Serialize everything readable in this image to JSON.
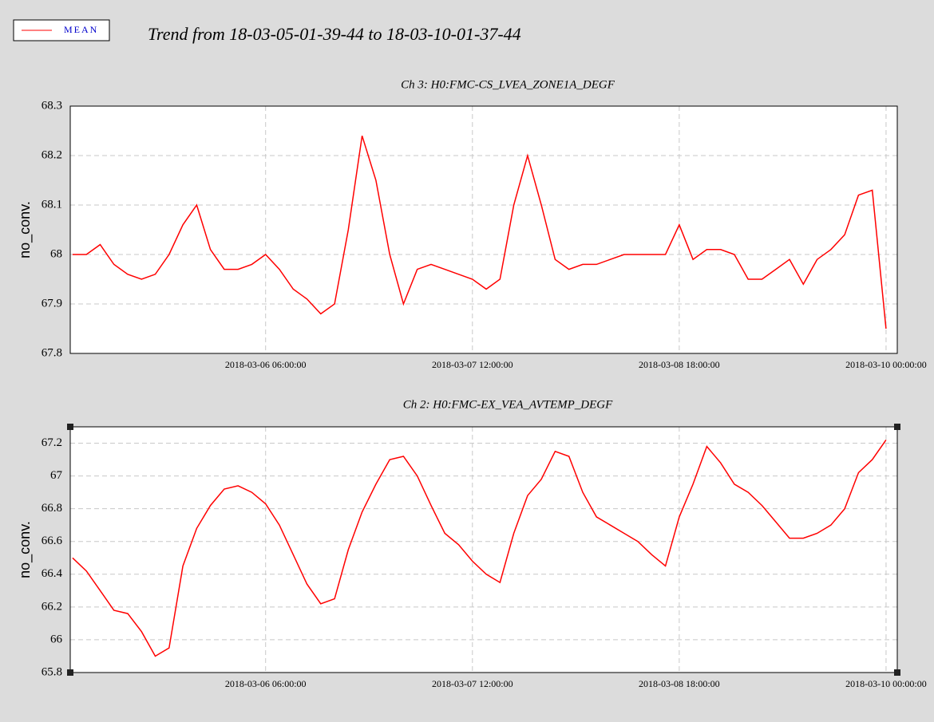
{
  "page_title": "Trend from 18-03-05-01-39-44 to 18-03-10-01-37-44",
  "chart_data": [
    {
      "type": "line",
      "title": "Ch 3: H0:FMC-CS_LVEA_ZONE1A_DEGF",
      "y_label": "no_conv.",
      "xlim": [
        "2018-03-05 01:39:44",
        "2018-03-10 01:37:44"
      ],
      "xticks": [
        "2018-03-06 06:00:00",
        "2018-03-07 12:00:00",
        "2018-03-08 18:00:00",
        "2018-03-10 00:00:00"
      ],
      "ylim": [
        67.8,
        68.3
      ],
      "yticks": [
        67.8,
        67.9,
        68,
        68.1,
        68.2,
        68.3
      ],
      "grid": true,
      "x": [
        "2018-03-05 02:00:00",
        "2018-03-05 04:00:00",
        "2018-03-05 06:00:00",
        "2018-03-05 08:00:00",
        "2018-03-05 10:00:00",
        "2018-03-05 12:00:00",
        "2018-03-05 14:00:00",
        "2018-03-05 16:00:00",
        "2018-03-05 18:00:00",
        "2018-03-05 20:00:00",
        "2018-03-05 22:00:00",
        "2018-03-06 00:00:00",
        "2018-03-06 02:00:00",
        "2018-03-06 04:00:00",
        "2018-03-06 06:00:00",
        "2018-03-06 08:00:00",
        "2018-03-06 10:00:00",
        "2018-03-06 12:00:00",
        "2018-03-06 14:00:00",
        "2018-03-06 16:00:00",
        "2018-03-06 18:00:00",
        "2018-03-06 20:00:00",
        "2018-03-06 22:00:00",
        "2018-03-07 00:00:00",
        "2018-03-07 02:00:00",
        "2018-03-07 04:00:00",
        "2018-03-07 06:00:00",
        "2018-03-07 08:00:00",
        "2018-03-07 10:00:00",
        "2018-03-07 12:00:00",
        "2018-03-07 14:00:00",
        "2018-03-07 16:00:00",
        "2018-03-07 18:00:00",
        "2018-03-07 20:00:00",
        "2018-03-07 22:00:00",
        "2018-03-08 00:00:00",
        "2018-03-08 02:00:00",
        "2018-03-08 04:00:00",
        "2018-03-08 06:00:00",
        "2018-03-08 08:00:00",
        "2018-03-08 10:00:00",
        "2018-03-08 12:00:00",
        "2018-03-08 14:00:00",
        "2018-03-08 16:00:00",
        "2018-03-08 18:00:00",
        "2018-03-08 20:00:00",
        "2018-03-08 22:00:00",
        "2018-03-09 00:00:00",
        "2018-03-09 02:00:00",
        "2018-03-09 04:00:00",
        "2018-03-09 06:00:00",
        "2018-03-09 08:00:00",
        "2018-03-09 10:00:00",
        "2018-03-09 12:00:00",
        "2018-03-09 14:00:00",
        "2018-03-09 16:00:00",
        "2018-03-09 18:00:00",
        "2018-03-09 20:00:00",
        "2018-03-09 22:00:00",
        "2018-03-10 00:00:00"
      ],
      "series": [
        {
          "name": "MEAN",
          "color": "#ff0000",
          "values": [
            68.0,
            68.0,
            68.02,
            67.98,
            67.96,
            67.95,
            67.96,
            68.0,
            68.06,
            68.1,
            68.01,
            67.97,
            67.97,
            67.98,
            68.0,
            67.97,
            67.93,
            67.91,
            67.88,
            67.9,
            68.05,
            68.24,
            68.15,
            68.0,
            67.9,
            67.97,
            67.98,
            67.97,
            67.96,
            67.95,
            67.93,
            67.95,
            68.1,
            68.2,
            68.1,
            67.99,
            67.97,
            67.98,
            67.98,
            67.99,
            68.0,
            68.0,
            68.0,
            68.0,
            68.06,
            67.99,
            68.01,
            68.01,
            68.0,
            67.95,
            67.95,
            67.97,
            67.99,
            67.94,
            67.99,
            68.01,
            68.04,
            68.12,
            68.13,
            67.85
          ]
        }
      ]
    },
    {
      "type": "line",
      "title": "Ch 2: H0:FMC-EX_VEA_AVTEMP_DEGF",
      "y_label": "no_conv.",
      "xlim": [
        "2018-03-05 01:39:44",
        "2018-03-10 01:37:44"
      ],
      "xticks": [
        "2018-03-06 06:00:00",
        "2018-03-07 12:00:00",
        "2018-03-08 18:00:00",
        "2018-03-10 00:00:00"
      ],
      "ylim": [
        65.8,
        67.3
      ],
      "yticks": [
        65.8,
        66,
        66.2,
        66.4,
        66.6,
        66.8,
        67,
        67.2
      ],
      "grid": true,
      "x": [
        "2018-03-05 02:00:00",
        "2018-03-05 04:00:00",
        "2018-03-05 06:00:00",
        "2018-03-05 08:00:00",
        "2018-03-05 10:00:00",
        "2018-03-05 12:00:00",
        "2018-03-05 14:00:00",
        "2018-03-05 16:00:00",
        "2018-03-05 18:00:00",
        "2018-03-05 20:00:00",
        "2018-03-05 22:00:00",
        "2018-03-06 00:00:00",
        "2018-03-06 02:00:00",
        "2018-03-06 04:00:00",
        "2018-03-06 06:00:00",
        "2018-03-06 08:00:00",
        "2018-03-06 10:00:00",
        "2018-03-06 12:00:00",
        "2018-03-06 14:00:00",
        "2018-03-06 16:00:00",
        "2018-03-06 18:00:00",
        "2018-03-06 20:00:00",
        "2018-03-06 22:00:00",
        "2018-03-07 00:00:00",
        "2018-03-07 02:00:00",
        "2018-03-07 04:00:00",
        "2018-03-07 06:00:00",
        "2018-03-07 08:00:00",
        "2018-03-07 10:00:00",
        "2018-03-07 12:00:00",
        "2018-03-07 14:00:00",
        "2018-03-07 16:00:00",
        "2018-03-07 18:00:00",
        "2018-03-07 20:00:00",
        "2018-03-07 22:00:00",
        "2018-03-08 00:00:00",
        "2018-03-08 02:00:00",
        "2018-03-08 04:00:00",
        "2018-03-08 06:00:00",
        "2018-03-08 08:00:00",
        "2018-03-08 10:00:00",
        "2018-03-08 12:00:00",
        "2018-03-08 14:00:00",
        "2018-03-08 16:00:00",
        "2018-03-08 18:00:00",
        "2018-03-08 20:00:00",
        "2018-03-08 22:00:00",
        "2018-03-09 00:00:00",
        "2018-03-09 02:00:00",
        "2018-03-09 04:00:00",
        "2018-03-09 06:00:00",
        "2018-03-09 08:00:00",
        "2018-03-09 10:00:00",
        "2018-03-09 12:00:00",
        "2018-03-09 14:00:00",
        "2018-03-09 16:00:00",
        "2018-03-09 18:00:00",
        "2018-03-09 20:00:00",
        "2018-03-09 22:00:00",
        "2018-03-10 00:00:00"
      ],
      "series": [
        {
          "name": "MEAN",
          "color": "#ff0000",
          "values": [
            66.5,
            66.42,
            66.3,
            66.18,
            66.16,
            66.05,
            65.9,
            65.95,
            66.45,
            66.68,
            66.82,
            66.92,
            66.94,
            66.9,
            66.83,
            66.7,
            66.52,
            66.34,
            66.22,
            66.25,
            66.55,
            66.78,
            66.95,
            67.1,
            67.12,
            67.0,
            66.82,
            66.65,
            66.58,
            66.48,
            66.4,
            66.35,
            66.65,
            66.88,
            66.98,
            67.15,
            67.12,
            66.9,
            66.75,
            66.7,
            66.65,
            66.6,
            66.52,
            66.45,
            66.75,
            66.95,
            67.18,
            67.08,
            66.95,
            66.9,
            66.82,
            66.72,
            66.62,
            66.62,
            66.65,
            66.7,
            66.8,
            67.02,
            67.1,
            67.22
          ]
        }
      ]
    }
  ]
}
